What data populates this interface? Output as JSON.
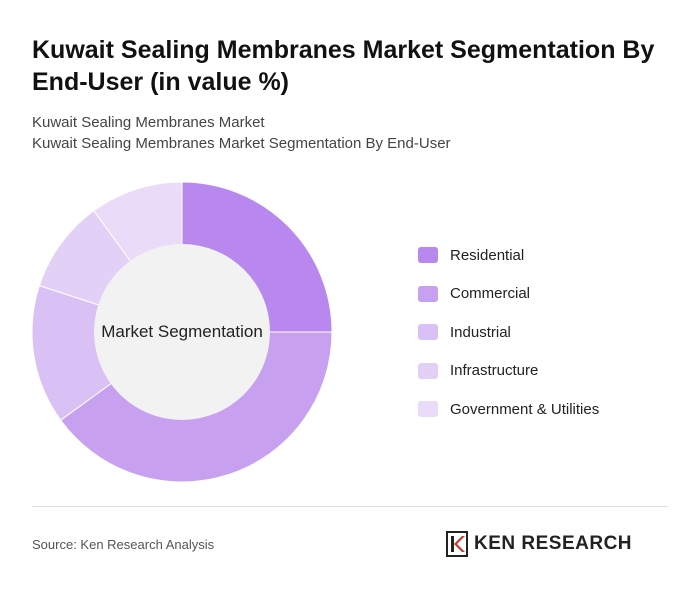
{
  "title": "Kuwait Sealing Membranes Market Segmentation By End-User (in value %)",
  "subtitle_1": "Kuwait Sealing Membranes Market",
  "subtitle_2": "Kuwait Sealing Membranes Market Segmentation By End-User",
  "center_label": "Market Segmentation",
  "source": "Source: Ken Research Analysis",
  "brand": "KEN RESEARCH",
  "chart_data": {
    "type": "pie",
    "donut": true,
    "legend_position": "right",
    "categories": [
      "Residential",
      "Commercial",
      "Industrial",
      "Infrastructure",
      "Government & Utilities"
    ],
    "values": [
      25,
      40,
      15,
      10,
      10
    ],
    "colors": [
      "#b888ee",
      "#c8a0f0",
      "#d9c0f5",
      "#e3d0f7",
      "#eadbf8"
    ]
  }
}
